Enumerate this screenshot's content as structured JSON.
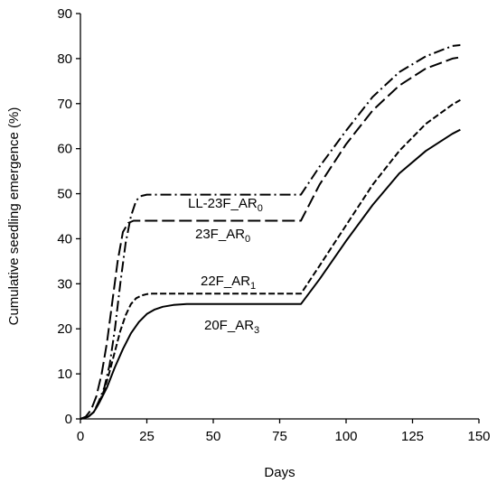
{
  "chart_data": {
    "type": "line",
    "title": "",
    "xlabel": "Days",
    "ylabel": "Cumulative seedling emergence (%)",
    "xlim": [
      0,
      150
    ],
    "ylim": [
      0,
      90
    ],
    "xticks": [
      0,
      25,
      50,
      75,
      100,
      125,
      150
    ],
    "yticks": [
      0,
      10,
      20,
      30,
      40,
      50,
      60,
      70,
      80,
      90
    ],
    "grid": false,
    "legend": "none",
    "series": [
      {
        "name": "LL-23F_AR",
        "subscript": "0",
        "style": "dash-dot",
        "x": [
          0,
          3,
          5,
          7,
          9,
          11,
          13,
          15,
          17,
          19,
          21,
          23,
          25,
          50,
          83,
          90,
          100,
          110,
          120,
          130,
          140,
          143
        ],
        "y": [
          0,
          0.5,
          1.5,
          4,
          7,
          12,
          20,
          30,
          39,
          45,
          48.5,
          49.5,
          49.8,
          49.8,
          49.8,
          56,
          64,
          71.5,
          77,
          80.5,
          82.8,
          83
        ]
      },
      {
        "name": "23F_AR",
        "subscript": "0",
        "style": "long-dash",
        "x": [
          0,
          2,
          4,
          6,
          8,
          10,
          12,
          14,
          16,
          18,
          20,
          22,
          50,
          83,
          90,
          100,
          110,
          120,
          130,
          140,
          143
        ],
        "y": [
          0,
          0.5,
          2,
          5,
          10,
          17,
          26,
          35,
          41.5,
          43.5,
          44,
          44,
          44,
          44,
          52,
          61,
          68.5,
          74,
          77.8,
          80,
          80.3
        ]
      },
      {
        "name": "22F_AR",
        "subscript": "1",
        "style": "short-dash",
        "x": [
          0,
          3,
          5,
          7,
          9,
          11,
          13,
          15,
          17,
          19,
          21,
          23,
          25,
          27,
          30,
          50,
          83,
          90,
          100,
          110,
          120,
          130,
          140,
          143
        ],
        "y": [
          0,
          0.5,
          1.5,
          3.5,
          6.5,
          10.5,
          15,
          19.5,
          23,
          25.5,
          26.8,
          27.4,
          27.7,
          27.8,
          27.8,
          27.8,
          27.8,
          34,
          43,
          52,
          59.5,
          65.5,
          69.8,
          70.8
        ]
      },
      {
        "name": "20F_AR",
        "subscript": "3",
        "style": "solid",
        "x": [
          0,
          3,
          5,
          7,
          10,
          13,
          16,
          19,
          22,
          25,
          28,
          31,
          35,
          40,
          50,
          83,
          90,
          100,
          110,
          120,
          130,
          140,
          143
        ],
        "y": [
          0,
          0.5,
          1.5,
          3.5,
          7,
          11.5,
          15.5,
          19,
          21.5,
          23.3,
          24.3,
          24.9,
          25.3,
          25.5,
          25.5,
          25.5,
          31,
          39.5,
          47.5,
          54.5,
          59.5,
          63.3,
          64.2
        ]
      }
    ]
  }
}
